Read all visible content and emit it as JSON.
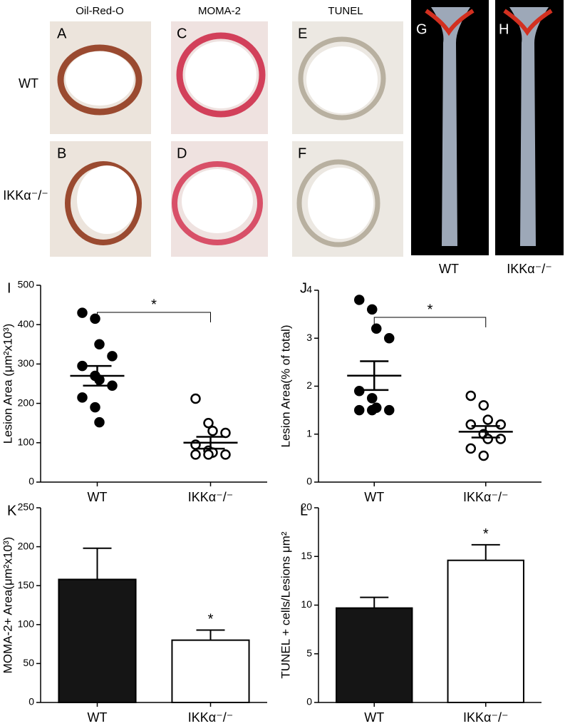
{
  "figure": {
    "column_headers": [
      "Oil-Red-O",
      "MOMA-2",
      "TUNEL"
    ],
    "row_labels": [
      "WT",
      "IKKα⁻/⁻"
    ],
    "panel_labels": [
      "A",
      "B",
      "C",
      "D",
      "E",
      "F",
      "G",
      "H"
    ],
    "aorta_labels": [
      "WT",
      "IKKα⁻/⁻"
    ]
  },
  "chart_data": [
    {
      "type": "dotplot",
      "panel_label": "I",
      "y_label": "Lesion Area (μm²x10³)",
      "categories": [
        "WT",
        "IKKα⁻/⁻"
      ],
      "groups": [
        {
          "values": [
            430,
            415,
            350,
            320,
            295,
            270,
            260,
            245,
            215,
            190,
            152
          ],
          "mean": 270,
          "sem": 25,
          "marker": "filled"
        },
        {
          "values": [
            212,
            150,
            130,
            125,
            95,
            80,
            75,
            70,
            70,
            70
          ],
          "mean": 100,
          "sem": 15,
          "marker": "open"
        }
      ],
      "significance": {
        "text": "*",
        "from": 0,
        "to": 1
      },
      "ylim": [
        0,
        500
      ],
      "yticks": [
        0,
        100,
        200,
        300,
        400,
        500
      ]
    },
    {
      "type": "dotplot",
      "panel_label": "J",
      "y_label": "Lesion Area(% of total)",
      "categories": [
        "WT",
        "IKKα⁻/⁻"
      ],
      "groups": [
        {
          "values": [
            3.8,
            3.6,
            3.2,
            3.0,
            1.9,
            1.75,
            1.55,
            1.5,
            1.5,
            1.5
          ],
          "mean": 2.22,
          "sem": 0.3,
          "marker": "filled"
        },
        {
          "values": [
            1.8,
            1.6,
            1.3,
            1.2,
            1.2,
            1.0,
            0.9,
            0.9,
            0.7,
            0.55
          ],
          "mean": 1.05,
          "sem": 0.12,
          "marker": "open"
        }
      ],
      "significance": {
        "text": "*",
        "from": 0,
        "to": 1
      },
      "ylim": [
        0,
        4
      ],
      "yticks": [
        0,
        1,
        2,
        3,
        4
      ]
    },
    {
      "type": "bar",
      "panel_label": "K",
      "y_label": "MOMA-2+ Area(μm²x10³)",
      "categories": [
        "WT",
        "IKKα⁻/⁻"
      ],
      "values": [
        158,
        80
      ],
      "errors": [
        40,
        13
      ],
      "colors": [
        "#151515",
        "#ffffff"
      ],
      "annotations": [
        {
          "text": "*",
          "category": 1
        }
      ],
      "ylim": [
        0,
        250
      ],
      "yticks": [
        0,
        50,
        100,
        150,
        200,
        250
      ]
    },
    {
      "type": "bar",
      "panel_label": "L",
      "y_label": "TUNEL + cells/Lesions μm²",
      "categories": [
        "WT",
        "IKKα⁻/⁻"
      ],
      "values": [
        9.7,
        14.6
      ],
      "errors": [
        1.1,
        1.6
      ],
      "colors": [
        "#151515",
        "#ffffff"
      ],
      "annotations": [
        {
          "text": "*",
          "category": 1
        }
      ],
      "ylim": [
        0,
        20
      ],
      "yticks": [
        0,
        5,
        10,
        15,
        20
      ]
    }
  ]
}
